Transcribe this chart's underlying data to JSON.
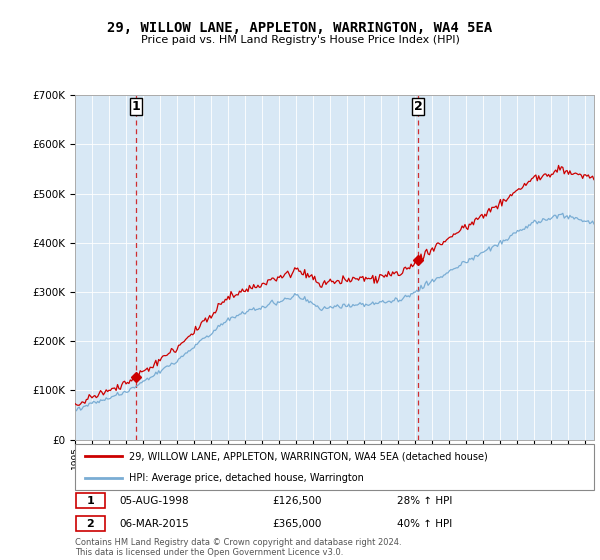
{
  "title": "29, WILLOW LANE, APPLETON, WARRINGTON, WA4 5EA",
  "subtitle": "Price paid vs. HM Land Registry's House Price Index (HPI)",
  "property_label": "29, WILLOW LANE, APPLETON, WARRINGTON, WA4 5EA (detached house)",
  "hpi_label": "HPI: Average price, detached house, Warrington",
  "property_color": "#cc0000",
  "hpi_color": "#7aadd4",
  "plot_bg_color": "#d8e8f5",
  "sale1_date": 1998.58,
  "sale1_price": 126500,
  "sale1_text": "05-AUG-1998",
  "sale1_amount": "£126,500",
  "sale1_hpi": "28% ↑ HPI",
  "sale2_date": 2015.17,
  "sale2_price": 365000,
  "sale2_text": "06-MAR-2015",
  "sale2_amount": "£365,000",
  "sale2_hpi": "40% ↑ HPI",
  "xmin": 1995.0,
  "xmax": 2025.5,
  "ymin": 0,
  "ymax": 700000,
  "yticks": [
    0,
    100000,
    200000,
    300000,
    400000,
    500000,
    600000,
    700000
  ],
  "ytick_labels": [
    "£0",
    "£100K",
    "£200K",
    "£300K",
    "£400K",
    "£500K",
    "£600K",
    "£700K"
  ],
  "xticks": [
    1995,
    1996,
    1997,
    1998,
    1999,
    2000,
    2001,
    2002,
    2003,
    2004,
    2005,
    2006,
    2007,
    2008,
    2009,
    2010,
    2011,
    2012,
    2013,
    2014,
    2015,
    2016,
    2017,
    2018,
    2019,
    2020,
    2021,
    2022,
    2023,
    2024,
    2025
  ],
  "footer": "Contains HM Land Registry data © Crown copyright and database right 2024.\nThis data is licensed under the Open Government Licence v3.0."
}
